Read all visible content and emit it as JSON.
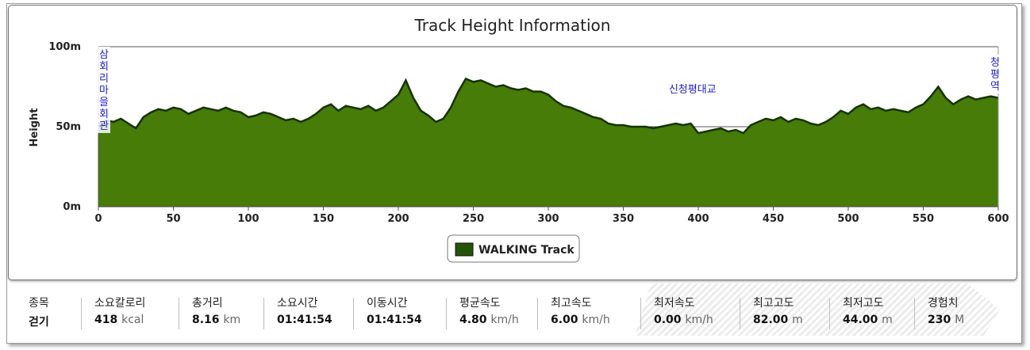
{
  "chart_data": {
    "type": "area",
    "title": "Track Height Information",
    "ylabel": "Height",
    "xlabel": "",
    "xlim": [
      0,
      600
    ],
    "ylim": [
      0,
      100
    ],
    "x_ticks": [
      0,
      50,
      100,
      150,
      200,
      250,
      300,
      350,
      400,
      450,
      500,
      550,
      600
    ],
    "y_ticks": [
      0,
      50,
      100
    ],
    "y_tick_labels": [
      "0m",
      "50m",
      "100m"
    ],
    "grid": "horizontal",
    "legend_position": "bottom-center",
    "series": [
      {
        "name": "WALKING Track",
        "color": "#467c07",
        "legend_color": "#245406",
        "x": [
          0,
          5,
          10,
          15,
          20,
          25,
          30,
          35,
          40,
          45,
          50,
          55,
          60,
          65,
          70,
          75,
          80,
          85,
          90,
          95,
          100,
          105,
          110,
          115,
          120,
          125,
          130,
          135,
          140,
          145,
          150,
          155,
          160,
          165,
          170,
          175,
          180,
          185,
          190,
          195,
          200,
          205,
          210,
          215,
          220,
          225,
          230,
          235,
          240,
          245,
          250,
          255,
          260,
          265,
          270,
          275,
          280,
          285,
          290,
          295,
          300,
          305,
          310,
          315,
          320,
          325,
          330,
          335,
          340,
          345,
          350,
          355,
          360,
          365,
          370,
          375,
          380,
          385,
          390,
          395,
          400,
          405,
          410,
          415,
          420,
          425,
          430,
          435,
          440,
          445,
          450,
          455,
          460,
          465,
          470,
          475,
          480,
          485,
          490,
          495,
          500,
          505,
          510,
          515,
          520,
          525,
          530,
          535,
          540,
          545,
          550,
          555,
          560,
          565,
          570,
          575,
          580,
          585,
          590,
          595,
          600
        ],
        "y": [
          52,
          54,
          53,
          55,
          52,
          49,
          56,
          59,
          61,
          60,
          62,
          61,
          58,
          60,
          62,
          61,
          60,
          62,
          60,
          59,
          56,
          57,
          59,
          58,
          56,
          54,
          55,
          53,
          55,
          58,
          62,
          64,
          60,
          63,
          62,
          61,
          63,
          60,
          62,
          66,
          70,
          79,
          68,
          60,
          57,
          53,
          55,
          62,
          72,
          80,
          78,
          79,
          77,
          75,
          76,
          74,
          73,
          74,
          72,
          72,
          70,
          66,
          63,
          62,
          60,
          58,
          56,
          55,
          52,
          51,
          51,
          50,
          50,
          50,
          49,
          50,
          51,
          52,
          51,
          52,
          46,
          47,
          48,
          49,
          47,
          48,
          46,
          51,
          53,
          55,
          54,
          56,
          53,
          55,
          54,
          52,
          51,
          53,
          56,
          60,
          58,
          62,
          64,
          61,
          62,
          60,
          61,
          60,
          59,
          62,
          64,
          69,
          75,
          68,
          64,
          67,
          69,
          67,
          68,
          69,
          68
        ],
        "min_points": [
          {
            "x": 0,
            "y": 44
          },
          {
            "x": 601,
            "y": 0
          }
        ]
      }
    ],
    "annotations": [
      {
        "text": "삼회리마을회관",
        "x": 0,
        "orientation": "vertical"
      },
      {
        "text": "신청평대교",
        "x": 375,
        "orientation": "horizontal"
      },
      {
        "text": "청평역",
        "x": 600,
        "orientation": "vertical"
      }
    ]
  },
  "stats": [
    {
      "label": "종목",
      "value": "걷기",
      "unit": ""
    },
    {
      "label": "소요칼로리",
      "value": "418",
      "unit": "kcal"
    },
    {
      "label": "총거리",
      "value": "8.16",
      "unit": "km"
    },
    {
      "label": "소요시간",
      "value": "01:41:54",
      "unit": ""
    },
    {
      "label": "이동시간",
      "value": "01:41:54",
      "unit": ""
    },
    {
      "label": "평균속도",
      "value": "4.80",
      "unit": "km/h"
    },
    {
      "label": "최고속도",
      "value": "6.00",
      "unit": "km/h"
    },
    {
      "label": "최저속도",
      "value": "0.00",
      "unit": "km/h"
    },
    {
      "label": "최고고도",
      "value": "82.00",
      "unit": "m"
    },
    {
      "label": "최저고도",
      "value": "44.00",
      "unit": "m"
    },
    {
      "label": "경험치",
      "value": "230",
      "unit": "M"
    }
  ]
}
